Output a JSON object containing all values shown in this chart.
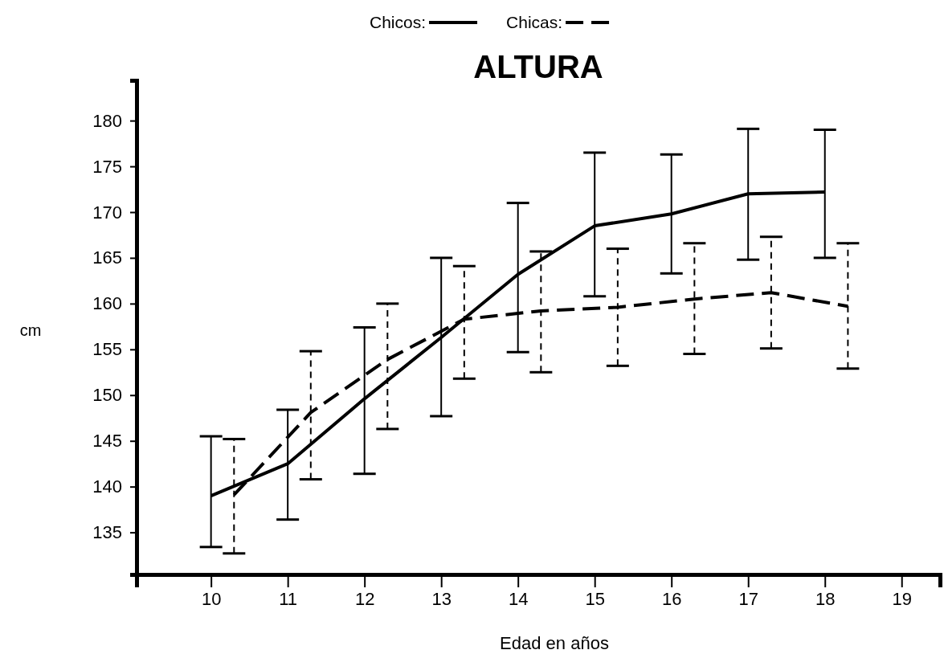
{
  "chart_data": {
    "type": "line",
    "title": "ALTURA",
    "xlabel": "Edad en años",
    "ylabel": "cm",
    "legend": "top",
    "grid": false,
    "marker": "none",
    "xlim": [
      9.03,
      19.5
    ],
    "xticks": [
      10,
      11,
      12,
      13,
      14,
      15,
      16,
      17,
      18,
      19
    ],
    "ylim": [
      130.4,
      184.4
    ],
    "yticks": [
      135,
      140,
      145,
      150,
      155,
      160,
      165,
      170,
      175,
      180
    ],
    "series": [
      {
        "name": "Chicos:",
        "color": "#000000",
        "line_style": "solid",
        "x": [
          10,
          11,
          12,
          13,
          14,
          15,
          16,
          17,
          18
        ],
        "values": [
          139,
          142.5,
          149.6,
          156.3,
          163.2,
          168.5,
          169.8,
          172,
          172.2
        ],
        "errors": [
          [
            133.4,
            145.5
          ],
          [
            136.4,
            148.4
          ],
          [
            141.4,
            157.4
          ],
          [
            147.7,
            165
          ],
          [
            154.7,
            171
          ],
          [
            160.8,
            176.5
          ],
          [
            163.3,
            176.3
          ],
          [
            164.8,
            179.1
          ],
          [
            165,
            179
          ]
        ]
      },
      {
        "name": "Chicas:",
        "color": "#000000",
        "line_style": "dashed",
        "x": [
          10.3,
          11.3,
          12.3,
          13.3,
          14.3,
          15.3,
          16.3,
          17.3,
          18.3
        ],
        "values": [
          139.1,
          148.1,
          153.9,
          158.3,
          159.2,
          159.6,
          160.5,
          161.2,
          159.7
        ],
        "errors": [
          [
            132.7,
            145.2
          ],
          [
            140.8,
            154.8
          ],
          [
            146.3,
            160
          ],
          [
            151.8,
            164.1
          ],
          [
            152.5,
            165.7
          ],
          [
            153.2,
            166
          ],
          [
            154.5,
            166.6
          ],
          [
            155.1,
            167.3
          ],
          [
            152.9,
            166.6
          ]
        ]
      }
    ]
  }
}
